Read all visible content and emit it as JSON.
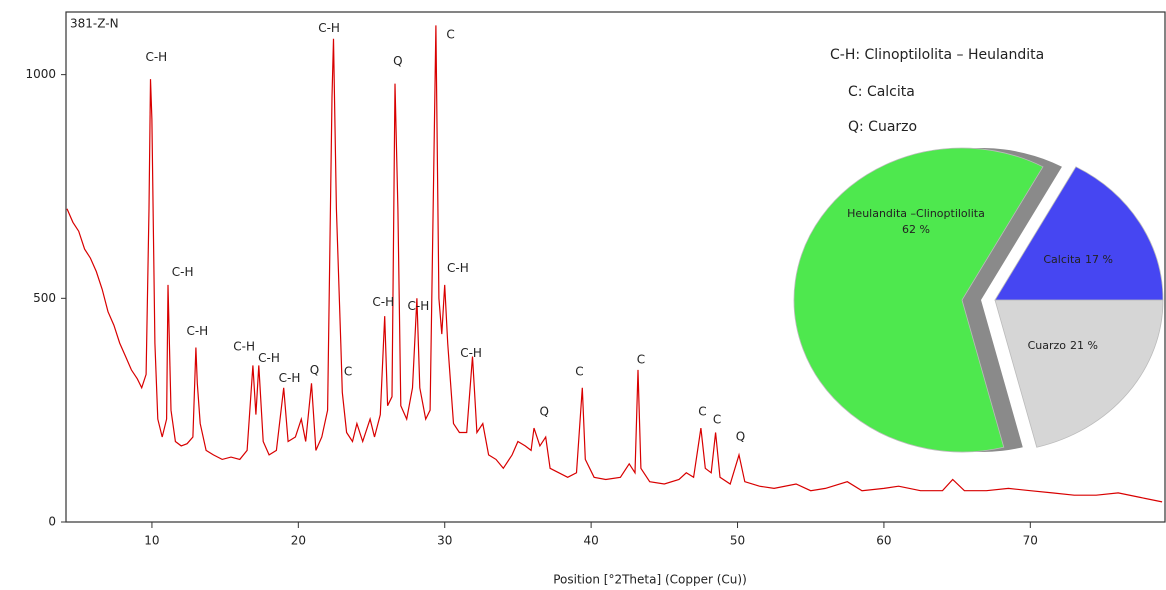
{
  "chart_data": [
    {
      "type": "line",
      "title": "381-Z-N",
      "x_label": "Position [°2Theta] (Copper (Cu))",
      "color": "#d80000",
      "x": [
        4.2,
        4.6,
        5.0,
        5.4,
        5.8,
        6.2,
        6.6,
        7.0,
        7.4,
        7.8,
        8.2,
        8.6,
        9.0,
        9.3,
        9.6,
        9.8,
        9.9,
        10.0,
        10.2,
        10.4,
        10.7,
        11.0,
        11.1,
        11.3,
        11.6,
        12.0,
        12.4,
        12.8,
        13.0,
        13.1,
        13.3,
        13.7,
        14.2,
        14.8,
        15.4,
        16.0,
        16.5,
        16.9,
        17.1,
        17.3,
        17.6,
        18.0,
        18.5,
        19.0,
        19.3,
        19.8,
        20.2,
        20.5,
        20.9,
        21.2,
        21.6,
        22.0,
        22.3,
        22.4,
        22.6,
        22.9,
        23.0,
        23.3,
        23.7,
        24.0,
        24.4,
        24.9,
        25.2,
        25.6,
        25.9,
        26.1,
        26.4,
        26.6,
        26.8,
        27.0,
        27.4,
        27.8,
        28.1,
        28.3,
        28.7,
        29.0,
        29.3,
        29.4,
        29.6,
        29.8,
        30.0,
        30.2,
        30.6,
        31.0,
        31.5,
        31.9,
        32.2,
        32.6,
        33.0,
        33.5,
        34.0,
        34.6,
        35.0,
        35.5,
        35.9,
        36.1,
        36.5,
        36.9,
        37.2,
        37.8,
        38.4,
        39.0,
        39.4,
        39.6,
        40.2,
        41.0,
        42.0,
        42.6,
        43.0,
        43.2,
        43.4,
        44.0,
        45.0,
        46.0,
        46.5,
        47.0,
        47.5,
        47.8,
        48.2,
        48.5,
        48.8,
        49.5,
        50.1,
        50.5,
        51.5,
        52.5,
        54.0,
        55.0,
        56.0,
        57.5,
        58.5,
        60.0,
        61.0,
        62.5,
        64.0,
        64.7,
        65.5,
        67.0,
        68.5,
        70.0,
        71.5,
        73.0,
        74.5,
        76.0,
        77.5,
        79.0
      ],
      "values": [
        700,
        670,
        650,
        610,
        590,
        560,
        520,
        470,
        440,
        400,
        370,
        340,
        320,
        300,
        330,
        700,
        990,
        900,
        400,
        230,
        190,
        230,
        530,
        250,
        180,
        170,
        175,
        190,
        390,
        310,
        220,
        160,
        150,
        140,
        145,
        140,
        160,
        350,
        240,
        350,
        180,
        150,
        160,
        300,
        180,
        190,
        230,
        180,
        310,
        160,
        190,
        250,
        950,
        1080,
        700,
        400,
        290,
        200,
        180,
        220,
        180,
        230,
        190,
        240,
        460,
        260,
        280,
        980,
        700,
        260,
        230,
        300,
        500,
        300,
        230,
        250,
        900,
        1110,
        500,
        420,
        530,
        400,
        220,
        200,
        200,
        370,
        200,
        220,
        150,
        140,
        120,
        150,
        180,
        170,
        160,
        210,
        170,
        190,
        120,
        110,
        100,
        110,
        300,
        140,
        100,
        95,
        100,
        130,
        110,
        340,
        120,
        90,
        85,
        95,
        110,
        100,
        210,
        120,
        110,
        200,
        100,
        85,
        150,
        90,
        80,
        75,
        85,
        70,
        75,
        90,
        70,
        75,
        80,
        70,
        70,
        95,
        70,
        70,
        75,
        70,
        65,
        60,
        60,
        65,
        55,
        45
      ],
      "xlim": [
        4.13,
        79.2
      ],
      "xticks": [
        10,
        20,
        30,
        40,
        50,
        60,
        70
      ],
      "ylim": [
        0,
        1140
      ],
      "yticks": [
        0,
        500,
        1000
      ],
      "annotations": [
        {
          "text": "C-H",
          "x": 10.3,
          "y": 1038
        },
        {
          "text": "C-H",
          "x": 12.1,
          "y": 558
        },
        {
          "text": "C-H",
          "x": 13.1,
          "y": 426
        },
        {
          "text": "C-H",
          "x": 16.3,
          "y": 391
        },
        {
          "text": "C-H",
          "x": 18.0,
          "y": 366
        },
        {
          "text": "C-H",
          "x": 19.4,
          "y": 321
        },
        {
          "text": "Q",
          "x": 21.1,
          "y": 339
        },
        {
          "text": "C",
          "x": 23.4,
          "y": 335
        },
        {
          "text": "C-H",
          "x": 22.1,
          "y": 1103
        },
        {
          "text": "Q",
          "x": 26.8,
          "y": 1029
        },
        {
          "text": "C",
          "x": 30.4,
          "y": 1089
        },
        {
          "text": "C-H",
          "x": 25.8,
          "y": 491
        },
        {
          "text": "C-H",
          "x": 28.2,
          "y": 482
        },
        {
          "text": "C-H",
          "x": 30.9,
          "y": 567
        },
        {
          "text": "C-H",
          "x": 31.8,
          "y": 377
        },
        {
          "text": "Q",
          "x": 36.8,
          "y": 246
        },
        {
          "text": "C",
          "x": 39.2,
          "y": 335
        },
        {
          "text": "C",
          "x": 43.4,
          "y": 362
        },
        {
          "text": "C",
          "x": 47.6,
          "y": 246
        },
        {
          "text": "C",
          "x": 48.6,
          "y": 228
        },
        {
          "text": "Q",
          "x": 50.2,
          "y": 190
        }
      ],
      "notes": [
        "C-H: Clinoptilolita – Heulandita",
        "C: Calcita",
        "Q: Cuarzo"
      ]
    },
    {
      "type": "pie",
      "categories": [
        "Heulandita –Clinoptilolita",
        "Calcita",
        "Cuarzo"
      ],
      "values": [
        62,
        17,
        21
      ],
      "value_labels": [
        "62 %",
        "17 %",
        "21 %"
      ],
      "colors": [
        "#4ee84e",
        "#4646f2",
        "#d6d6d6"
      ]
    }
  ]
}
